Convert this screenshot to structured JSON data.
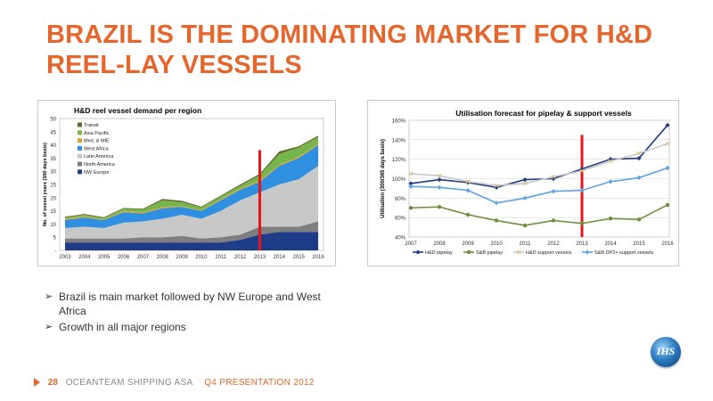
{
  "slide": {
    "title": "BRAZIL IS THE DOMINATING MARKET FOR H&D REEL-LAY VESSELS",
    "bullets": [
      "Brazil is main market followed by NW Europe  and West Africa",
      "Growth in all major regions"
    ],
    "logo_text": "IHS",
    "footer": {
      "page": "28",
      "company": "OCEANTEAM SHIPPING ASA",
      "presentation": "Q4 PRESENTATION 2012"
    }
  },
  "chart_data": [
    {
      "type": "area",
      "title": "H&D reel vessel demand per region",
      "ylabel": "No. of vessel years (300 days basis)",
      "xlabel": "",
      "ylim": [
        0,
        50
      ],
      "yticks": [
        0,
        5,
        10,
        15,
        20,
        25,
        30,
        35,
        40,
        45,
        50
      ],
      "ytick_labels": [
        "-",
        "5",
        "10",
        "15",
        "20",
        "25",
        "30",
        "35",
        "40",
        "45",
        "50"
      ],
      "x": [
        "2003",
        "2004",
        "2005",
        "2006",
        "2007",
        "2008",
        "2009",
        "2010",
        "2011",
        "2012",
        "2013",
        "2014",
        "2015",
        "2016"
      ],
      "stacked": true,
      "legend_position": "top-left",
      "marker_year": "2013",
      "marker_color": "#e8141a",
      "series": [
        {
          "name": "NW Europe",
          "color": "#1f3c88",
          "values": [
            3,
            3,
            3,
            3,
            3,
            3,
            3,
            3,
            3,
            4,
            6,
            7,
            7,
            7
          ]
        },
        {
          "name": "North America",
          "color": "#7f7f7f",
          "values": [
            1.5,
            1.5,
            1.5,
            1.5,
            2,
            2,
            2.5,
            1.5,
            2,
            2,
            3,
            2,
            2,
            4
          ]
        },
        {
          "name": "Latin America",
          "color": "#c8c8c8",
          "values": [
            4,
            4.5,
            4,
            6,
            6,
            7,
            8,
            7.5,
            10,
            13,
            13,
            16,
            18,
            21
          ]
        },
        {
          "name": "West Africa",
          "color": "#2f8fe0",
          "values": [
            3,
            3.5,
            3,
            4,
            3,
            4,
            3,
            3,
            4,
            4,
            4,
            7,
            8,
            8
          ]
        },
        {
          "name": "Med. & MIE",
          "color": "#d6a532",
          "values": [
            0.5,
            0.5,
            0.3,
            0.5,
            0.5,
            0.5,
            0.3,
            0.3,
            0.5,
            0.5,
            0.5,
            0.5,
            0.5,
            0.5
          ]
        },
        {
          "name": "Asia Pacific",
          "color": "#76b54c",
          "values": [
            0.5,
            0.5,
            0.5,
            0.8,
            1,
            2.5,
            1.5,
            1,
            1,
            1,
            2,
            4,
            3.5,
            2.5
          ]
        },
        {
          "name": "Transit",
          "color": "#5f6b2a",
          "values": [
            0.3,
            0.3,
            0.3,
            0.3,
            0.3,
            0.5,
            0.5,
            0.3,
            0.3,
            0.5,
            0.5,
            1,
            0.5,
            0.5
          ]
        }
      ]
    },
    {
      "type": "line",
      "title": "Utilisation forecast for pipelay & support vessels",
      "ylabel": "Utilisation (300/365 days basis)",
      "xlabel": "",
      "ylim": [
        40,
        160
      ],
      "yticks": [
        40,
        60,
        80,
        100,
        120,
        140,
        160
      ],
      "ytick_labels": [
        "40%",
        "60%",
        "80%",
        "100%",
        "120%",
        "140%",
        "160%"
      ],
      "x": [
        "2007",
        "2008",
        "2009",
        "2010",
        "2011",
        "2012",
        "2013",
        "2014",
        "2015",
        "2016"
      ],
      "legend_position": "bottom",
      "marker_year": "2013",
      "marker_color": "#e8141a",
      "series": [
        {
          "name": "H&D pipelay",
          "color": "#1f3c88",
          "marker": "diamond",
          "values": [
            95,
            99,
            96,
            91,
            99,
            100,
            110,
            120,
            121,
            155
          ]
        },
        {
          "name": "S&B pipelay",
          "color": "#6f8f3e",
          "marker": "circle",
          "values": [
            70,
            71,
            63,
            57,
            52,
            57,
            54,
            59,
            58,
            73
          ]
        },
        {
          "name": "H&D support vessels",
          "color": "#c8c8c8",
          "marker": "x",
          "values": [
            105,
            103,
            97,
            93,
            95,
            102,
            108,
            118,
            126,
            136
          ]
        },
        {
          "name": "S&B DP2+ support vessels",
          "color": "#5ea2e8",
          "marker": "diamond",
          "values": [
            92,
            91,
            88,
            75,
            80,
            87,
            88,
            97,
            101,
            111
          ]
        }
      ]
    }
  ]
}
